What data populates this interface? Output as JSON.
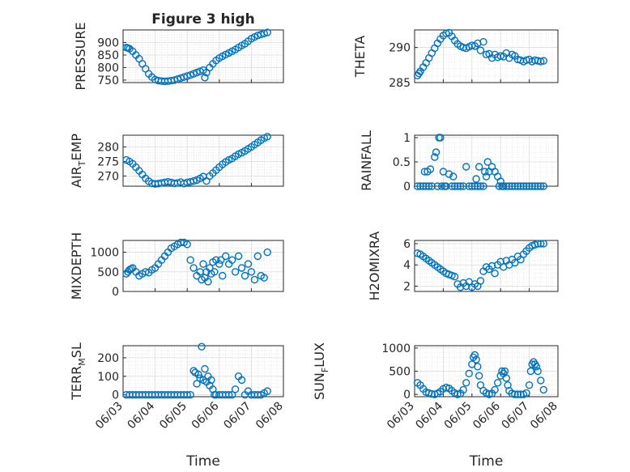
{
  "chart_data": [
    {
      "type": "scatter",
      "title": "Figure 3 high",
      "ylabel": "PRESSURE",
      "xlim": [
        0,
        5
      ],
      "ylim": [
        740,
        950
      ],
      "yticks": [
        750,
        800,
        850,
        900
      ],
      "xticks": [],
      "x": [
        0.1,
        0.15,
        0.2,
        0.3,
        0.4,
        0.5,
        0.6,
        0.7,
        0.8,
        0.9,
        1.0,
        1.1,
        1.2,
        1.3,
        1.4,
        1.5,
        1.6,
        1.7,
        1.8,
        1.9,
        2.0,
        2.1,
        2.2,
        2.3,
        2.4,
        2.5,
        2.55,
        2.6,
        2.7,
        2.8,
        2.9,
        3.0,
        3.1,
        3.2,
        3.3,
        3.4,
        3.5,
        3.6,
        3.7,
        3.8,
        3.9,
        4.0,
        4.1,
        4.2,
        4.3,
        4.4,
        4.5
      ],
      "y": [
        880,
        878,
        875,
        865,
        850,
        835,
        815,
        795,
        775,
        762,
        752,
        748,
        746,
        745,
        746,
        748,
        750,
        754,
        758,
        762,
        766,
        770,
        775,
        780,
        785,
        790,
        760,
        780,
        800,
        815,
        828,
        838,
        845,
        852,
        858,
        865,
        872,
        880,
        888,
        895,
        905,
        915,
        922,
        928,
        932,
        936,
        940
      ],
      "grid": true
    },
    {
      "type": "scatter",
      "ylabel": "THETA",
      "xlim": [
        0,
        5
      ],
      "ylim": [
        285,
        292.5
      ],
      "yticks": [
        285,
        290
      ],
      "xticks": [],
      "x": [
        0.1,
        0.15,
        0.2,
        0.3,
        0.4,
        0.5,
        0.6,
        0.7,
        0.8,
        0.9,
        1.0,
        1.1,
        1.2,
        1.3,
        1.4,
        1.5,
        1.6,
        1.7,
        1.8,
        1.9,
        2.0,
        2.1,
        2.2,
        2.3,
        2.4,
        2.5,
        2.6,
        2.7,
        2.8,
        2.9,
        3.0,
        3.1,
        3.2,
        3.3,
        3.4,
        3.5,
        3.6,
        3.7,
        3.8,
        3.9,
        4.0,
        4.1,
        4.2,
        4.3,
        4.4,
        4.5
      ],
      "y": [
        286.0,
        286.3,
        286.6,
        287.2,
        287.8,
        288.5,
        289.2,
        289.9,
        290.6,
        291.2,
        291.7,
        292.0,
        292.1,
        291.6,
        291.0,
        290.5,
        290.2,
        290.0,
        289.9,
        290.1,
        290.3,
        290.2,
        290.6,
        289.6,
        290.8,
        289.0,
        289.1,
        288.5,
        289.0,
        288.6,
        288.8,
        288.7,
        289.2,
        288.5,
        289.0,
        288.8,
        288.3,
        288.2,
        288.0,
        288.2,
        288.3,
        288.0,
        288.2,
        288.1,
        288.0,
        288.1
      ],
      "grid": true
    },
    {
      "type": "scatter",
      "ylabel": "AIR_TEMP",
      "xlim": [
        0,
        5
      ],
      "ylim": [
        266.5,
        284
      ],
      "yticks": [
        270,
        275,
        280
      ],
      "xticks": [],
      "x": [
        0.1,
        0.2,
        0.3,
        0.4,
        0.5,
        0.6,
        0.7,
        0.8,
        0.9,
        1.0,
        1.1,
        1.2,
        1.3,
        1.4,
        1.5,
        1.6,
        1.7,
        1.8,
        1.9,
        2.0,
        2.1,
        2.2,
        2.3,
        2.4,
        2.5,
        2.6,
        2.7,
        2.8,
        2.9,
        3.0,
        3.1,
        3.2,
        3.3,
        3.4,
        3.5,
        3.6,
        3.7,
        3.8,
        3.9,
        4.0,
        4.1,
        4.2,
        4.3,
        4.4,
        4.5
      ],
      "y": [
        275.5,
        275.0,
        274.2,
        273.0,
        271.8,
        270.5,
        269.2,
        268.2,
        267.5,
        267.3,
        267.4,
        267.6,
        267.8,
        268.0,
        267.8,
        267.5,
        267.6,
        267.9,
        267.4,
        267.8,
        268.0,
        268.3,
        268.6,
        269.2,
        269.8,
        268.3,
        270.0,
        271.0,
        272.0,
        273.0,
        274.0,
        274.8,
        275.5,
        276.0,
        276.8,
        277.5,
        278.0,
        278.6,
        279.3,
        280.0,
        280.8,
        281.5,
        282.3,
        283.0,
        283.5
      ],
      "grid": true
    },
    {
      "type": "scatter",
      "ylabel": "RAINFALL",
      "xlim": [
        0,
        5
      ],
      "ylim": [
        0,
        1.05
      ],
      "yticks": [
        0,
        0.5,
        1
      ],
      "xticks": [],
      "x": [
        0.1,
        0.2,
        0.3,
        0.35,
        0.4,
        0.45,
        0.5,
        0.55,
        0.6,
        0.7,
        0.75,
        0.8,
        0.85,
        0.9,
        0.95,
        1.0,
        1.05,
        1.1,
        1.2,
        1.3,
        1.35,
        1.4,
        1.5,
        1.6,
        1.7,
        1.8,
        1.9,
        2.0,
        2.1,
        2.15,
        2.2,
        2.25,
        2.3,
        2.4,
        2.45,
        2.5,
        2.55,
        2.6,
        2.7,
        2.8,
        2.9,
        2.95,
        3.0,
        3.05,
        3.1,
        3.2,
        3.3,
        3.4,
        3.5,
        3.6,
        3.7,
        3.8,
        3.9,
        4.0,
        4.1,
        4.2,
        4.3,
        4.4,
        4.5
      ],
      "y": [
        0,
        0,
        0,
        0.3,
        0,
        0.3,
        0,
        0.35,
        0,
        0.6,
        0.7,
        0,
        1.0,
        1.0,
        0,
        0.3,
        0,
        0,
        0.25,
        0,
        0.2,
        0,
        0,
        0,
        0,
        0.4,
        0,
        0,
        0,
        0.15,
        0,
        0.4,
        0,
        0,
        0.3,
        0.2,
        0.5,
        0.3,
        0.4,
        0.3,
        0.2,
        0,
        0.1,
        0,
        0,
        0,
        0,
        0,
        0,
        0,
        0,
        0,
        0,
        0,
        0,
        0,
        0,
        0,
        0
      ],
      "grid": true
    },
    {
      "type": "scatter",
      "ylabel": "MIXDEPTH",
      "xlim": [
        0,
        5
      ],
      "ylim": [
        0,
        1300
      ],
      "yticks": [
        0,
        500,
        1000
      ],
      "xticks": [],
      "x": [
        0.1,
        0.15,
        0.2,
        0.25,
        0.3,
        0.4,
        0.5,
        0.6,
        0.7,
        0.8,
        0.9,
        1.0,
        1.1,
        1.2,
        1.3,
        1.4,
        1.5,
        1.6,
        1.7,
        1.8,
        1.9,
        2.0,
        2.1,
        2.2,
        2.3,
        2.4,
        2.45,
        2.5,
        2.55,
        2.6,
        2.65,
        2.7,
        2.75,
        2.8,
        2.85,
        2.9,
        3.0,
        3.05,
        3.1,
        3.2,
        3.3,
        3.4,
        3.5,
        3.6,
        3.7,
        3.8,
        3.9,
        4.0,
        4.1,
        4.2,
        4.3,
        4.4,
        4.5
      ],
      "y": [
        450,
        500,
        550,
        580,
        600,
        500,
        400,
        450,
        500,
        480,
        550,
        600,
        700,
        800,
        900,
        1000,
        1100,
        1150,
        1200,
        1250,
        1250,
        1200,
        800,
        600,
        400,
        500,
        300,
        700,
        350,
        500,
        250,
        600,
        450,
        750,
        500,
        800,
        700,
        800,
        400,
        900,
        700,
        800,
        500,
        900,
        600,
        400,
        700,
        500,
        300,
        900,
        400,
        350,
        1000
      ],
      "grid": true
    },
    {
      "type": "scatter",
      "ylabel": "H2OMIXRA",
      "xlim": [
        0,
        5
      ],
      "ylim": [
        1.5,
        6.3
      ],
      "yticks": [
        2,
        4,
        6
      ],
      "xticks": [],
      "x": [
        0.1,
        0.2,
        0.3,
        0.4,
        0.5,
        0.6,
        0.7,
        0.8,
        0.9,
        1.0,
        1.1,
        1.2,
        1.3,
        1.4,
        1.5,
        1.6,
        1.7,
        1.8,
        1.9,
        2.0,
        2.1,
        2.2,
        2.3,
        2.4,
        2.5,
        2.6,
        2.7,
        2.8,
        2.9,
        3.0,
        3.1,
        3.2,
        3.3,
        3.4,
        3.5,
        3.6,
        3.7,
        3.8,
        3.9,
        4.0,
        4.1,
        4.2,
        4.3,
        4.4,
        4.5
      ],
      "y": [
        5.1,
        5.0,
        4.8,
        4.6,
        4.4,
        4.2,
        4.0,
        3.8,
        3.6,
        3.4,
        3.2,
        3.1,
        3.0,
        2.9,
        2.2,
        1.9,
        2.3,
        2.0,
        2.4,
        1.9,
        2.2,
        2.0,
        2.5,
        3.4,
        3.8,
        3.6,
        3.9,
        3.2,
        4.0,
        4.3,
        3.8,
        4.4,
        4.0,
        4.5,
        4.2,
        4.8,
        4.5,
        5.0,
        5.3,
        5.6,
        5.8,
        5.9,
        6.0,
        6.0,
        6.0
      ],
      "grid": true
    },
    {
      "type": "scatter",
      "ylabel": "TERR_MSL",
      "xlabel": "Time",
      "xlim": [
        0,
        5
      ],
      "ylim": [
        -10,
        265
      ],
      "yticks": [
        0,
        100,
        200
      ],
      "xticks": [
        "06/03",
        "06/04",
        "06/05",
        "06/06",
        "06/07",
        "06/08"
      ],
      "x": [
        0.1,
        0.2,
        0.3,
        0.4,
        0.5,
        0.6,
        0.7,
        0.8,
        0.9,
        1.0,
        1.1,
        1.2,
        1.3,
        1.4,
        1.5,
        1.6,
        1.7,
        1.8,
        1.9,
        2.0,
        2.1,
        2.2,
        2.25,
        2.3,
        2.35,
        2.4,
        2.45,
        2.5,
        2.55,
        2.6,
        2.65,
        2.7,
        2.75,
        2.8,
        2.85,
        2.9,
        3.0,
        3.1,
        3.2,
        3.3,
        3.4,
        3.5,
        3.6,
        3.7,
        3.8,
        3.9,
        4.0,
        4.1,
        4.2,
        4.3,
        4.4,
        4.5
      ],
      "y": [
        0,
        0,
        0,
        0,
        0,
        0,
        0,
        0,
        0,
        0,
        0,
        0,
        0,
        0,
        0,
        0,
        0,
        0,
        0,
        0,
        0,
        130,
        120,
        60,
        110,
        90,
        260,
        80,
        140,
        70,
        100,
        50,
        80,
        30,
        0,
        0,
        0,
        0,
        0,
        0,
        0,
        30,
        100,
        80,
        0,
        20,
        0,
        0,
        0,
        0,
        10,
        20
      ],
      "grid": true
    },
    {
      "type": "scatter",
      "ylabel": "SUN_FLUX",
      "xlabel": "Time",
      "xlim": [
        0,
        5
      ],
      "ylim": [
        -50,
        1050
      ],
      "yticks": [
        0,
        500,
        1000
      ],
      "xticks": [
        "06/03",
        "06/04",
        "06/05",
        "06/06",
        "06/07",
        "06/08"
      ],
      "x": [
        0.1,
        0.2,
        0.3,
        0.4,
        0.5,
        0.6,
        0.7,
        0.8,
        0.9,
        1.0,
        1.1,
        1.2,
        1.3,
        1.4,
        1.5,
        1.6,
        1.7,
        1.8,
        1.9,
        2.0,
        2.05,
        2.1,
        2.15,
        2.2,
        2.25,
        2.3,
        2.4,
        2.5,
        2.6,
        2.7,
        2.8,
        2.9,
        3.0,
        3.05,
        3.1,
        3.15,
        3.2,
        3.25,
        3.3,
        3.4,
        3.5,
        3.6,
        3.7,
        3.8,
        3.9,
        4.0,
        4.05,
        4.1,
        4.15,
        4.2,
        4.25,
        4.3,
        4.4,
        4.5
      ],
      "y": [
        250,
        200,
        120,
        50,
        30,
        10,
        0,
        20,
        60,
        120,
        150,
        130,
        80,
        30,
        0,
        20,
        100,
        250,
        450,
        650,
        800,
        850,
        750,
        600,
        400,
        200,
        80,
        30,
        0,
        20,
        100,
        250,
        400,
        500,
        450,
        500,
        350,
        200,
        80,
        20,
        0,
        0,
        0,
        0,
        30,
        200,
        500,
        650,
        700,
        650,
        600,
        500,
        300,
        100
      ],
      "grid": true
    }
  ]
}
